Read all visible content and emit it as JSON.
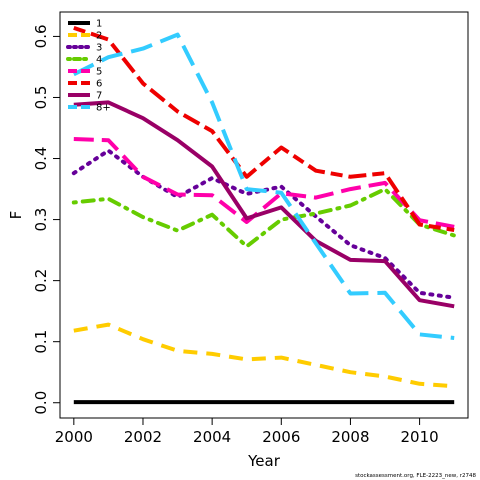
{
  "chart_data": {
    "type": "line",
    "title": "",
    "xlabel": "Year",
    "ylabel": "F",
    "xlim": [
      1999.6,
      2011.4
    ],
    "ylim": [
      -0.025,
      0.64
    ],
    "x_ticks": [
      2000,
      2002,
      2004,
      2006,
      2008,
      2010
    ],
    "y_ticks": [
      0.0,
      0.1,
      0.2,
      0.3,
      0.4,
      0.5,
      0.6
    ],
    "y_tick_labels": [
      "0.0",
      "0.1",
      "0.2",
      "0.3",
      "0.4",
      "0.5",
      "0.6"
    ],
    "grid": false,
    "legend_position": "top-left",
    "x": [
      2000,
      2001,
      2002,
      2003,
      2004,
      2005,
      2006,
      2007,
      2008,
      2009,
      2010,
      2011
    ],
    "series": [
      {
        "name": "1",
        "color": "#000000",
        "dash": "solid",
        "values": [
          0.001,
          0.001,
          0.001,
          0.001,
          0.001,
          0.001,
          0.001,
          0.001,
          0.001,
          0.001,
          0.001,
          0.001
        ]
      },
      {
        "name": "2",
        "color": "#FFCC00",
        "dash": "dashed",
        "values": [
          0.118,
          0.128,
          0.104,
          0.085,
          0.08,
          0.071,
          0.074,
          0.062,
          0.05,
          0.043,
          0.031,
          0.027
        ]
      },
      {
        "name": "3",
        "color": "#660099",
        "dash": "dotted",
        "values": [
          0.376,
          0.413,
          0.37,
          0.337,
          0.368,
          0.342,
          0.354,
          0.305,
          0.258,
          0.237,
          0.18,
          0.172
        ]
      },
      {
        "name": "4",
        "color": "#66CC00",
        "dash": "dotdash",
        "values": [
          0.328,
          0.334,
          0.304,
          0.282,
          0.308,
          0.256,
          0.3,
          0.31,
          0.323,
          0.35,
          0.292,
          0.274
        ]
      },
      {
        "name": "5",
        "color": "#FF00AA",
        "dash": "longdash",
        "values": [
          0.432,
          0.43,
          0.37,
          0.341,
          0.34,
          0.296,
          0.343,
          0.336,
          0.35,
          0.36,
          0.299,
          0.288
        ]
      },
      {
        "name": "6",
        "color": "#EE0000",
        "dash": "twodash",
        "values": [
          0.614,
          0.595,
          0.523,
          0.477,
          0.445,
          0.37,
          0.418,
          0.38,
          0.37,
          0.376,
          0.292,
          0.283
        ]
      },
      {
        "name": "7",
        "color": "#990066",
        "dash": "solid",
        "values": [
          0.488,
          0.492,
          0.466,
          0.43,
          0.387,
          0.302,
          0.32,
          0.265,
          0.234,
          0.232,
          0.168,
          0.158
        ]
      },
      {
        "name": "8+",
        "color": "#33CCFF",
        "dash": "longdash2",
        "values": [
          0.538,
          0.566,
          0.58,
          0.603,
          0.492,
          0.35,
          0.344,
          0.261,
          0.179,
          0.18,
          0.112,
          0.106
        ]
      }
    ],
    "footer": "stockassessment.org, FLE-2223_new, r2748"
  }
}
